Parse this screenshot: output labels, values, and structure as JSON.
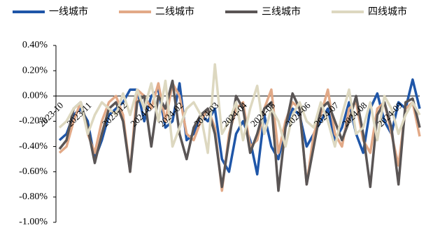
{
  "chart_data": {
    "type": "line",
    "categories": [
      "2023-10",
      null,
      null,
      null,
      "2023-11",
      null,
      null,
      null,
      null,
      "2023-12",
      null,
      null,
      null,
      "2024-01",
      null,
      null,
      null,
      "2024-02",
      null,
      null,
      null,
      null,
      "2024-03",
      null,
      null,
      null,
      "2024-04",
      null,
      null,
      null,
      "2024-05",
      null,
      null,
      null,
      null,
      "2024-06",
      null,
      null,
      null,
      "2024-07",
      null,
      null,
      null,
      "2024-08",
      null,
      null,
      null,
      null,
      "2024-09",
      null,
      null,
      null
    ],
    "ylim": [
      -1.0,
      0.4
    ],
    "yticks": [
      {
        "value": 0.4,
        "label": "0.40%"
      },
      {
        "value": 0.2,
        "label": "0.20%"
      },
      {
        "value": 0.0,
        "label": "0.00%"
      },
      {
        "value": -0.2,
        "label": "-0.20%"
      },
      {
        "value": -0.4,
        "label": "-0.40%"
      },
      {
        "value": -0.6,
        "label": "-0.60%"
      },
      {
        "value": -0.8,
        "label": "-0.80%"
      },
      {
        "value": -1.0,
        "label": "-1.00%"
      }
    ],
    "series": [
      {
        "name": "一线城市",
        "color": "#1f56a8",
        "values": [
          -0.35,
          -0.3,
          -0.15,
          -0.1,
          -0.2,
          -0.5,
          -0.35,
          -0.15,
          -0.1,
          -0.05,
          0.05,
          0.05,
          -0.2,
          0.0,
          0.05,
          -0.25,
          -0.2,
          0.1,
          -0.35,
          -0.3,
          -0.15,
          -0.2,
          -0.1,
          -0.5,
          -0.6,
          -0.3,
          -0.2,
          -0.35,
          -0.62,
          -0.15,
          -0.4,
          -0.5,
          -0.25,
          -0.1,
          -0.15,
          -0.4,
          -0.3,
          -0.2,
          -0.1,
          -0.35,
          -0.25,
          -0.05,
          -0.3,
          -0.45,
          -0.1,
          0.02,
          -0.2,
          -0.3,
          -0.05,
          -0.1,
          0.13,
          -0.1
        ]
      },
      {
        "name": "二线城市",
        "color": "#e2a987",
        "values": [
          -0.45,
          -0.4,
          -0.2,
          -0.05,
          -0.3,
          -0.45,
          -0.2,
          -0.05,
          0.0,
          -0.15,
          -0.6,
          0.05,
          0.0,
          -0.1,
          0.1,
          -0.2,
          0.1,
          0.0,
          -0.3,
          -0.35,
          -0.2,
          -0.1,
          -0.25,
          -0.75,
          -0.3,
          -0.1,
          -0.05,
          -0.4,
          -0.35,
          -0.1,
          0.05,
          -0.45,
          -0.2,
          -0.05,
          -0.1,
          -0.7,
          -0.3,
          -0.15,
          0.05,
          -0.3,
          -0.4,
          -0.1,
          -0.05,
          -0.35,
          -0.45,
          -0.1,
          -0.05,
          -0.3,
          -0.55,
          -0.1,
          -0.05,
          -0.32
        ]
      },
      {
        "name": "三线城市",
        "color": "#5a5555",
        "values": [
          -0.42,
          -0.35,
          -0.1,
          -0.05,
          -0.25,
          -0.53,
          -0.3,
          -0.1,
          -0.05,
          -0.2,
          -0.6,
          -0.05,
          0.0,
          -0.4,
          0.0,
          -0.1,
          0.12,
          -0.3,
          -0.5,
          -0.25,
          -0.15,
          -0.1,
          -0.3,
          -0.72,
          -0.35,
          0.0,
          -0.1,
          -0.45,
          -0.3,
          -0.1,
          -0.05,
          -0.75,
          -0.25,
          0.02,
          -0.1,
          -0.7,
          -0.4,
          -0.1,
          -0.05,
          -0.2,
          -0.35,
          -0.2,
          0.0,
          -0.3,
          -0.72,
          -0.15,
          -0.05,
          -0.25,
          -0.7,
          -0.05,
          -0.02,
          -0.25
        ]
      },
      {
        "name": "四线城市",
        "color": "#ddd8c0",
        "values": [
          -0.25,
          -0.2,
          -0.1,
          -0.05,
          -0.3,
          -0.15,
          -0.05,
          -0.1,
          -0.15,
          0.02,
          -0.15,
          0.05,
          -0.1,
          0.1,
          -0.2,
          0.12,
          -0.4,
          -0.25,
          -0.1,
          -0.05,
          -0.15,
          -0.45,
          0.25,
          -0.3,
          -0.2,
          -0.05,
          -0.35,
          -0.1,
          0.08,
          -0.3,
          -0.1,
          -0.2,
          -0.4,
          -0.15,
          -0.05,
          -0.2,
          -0.25,
          -0.05,
          -0.2,
          -0.4,
          -0.15,
          0.05,
          -0.3,
          -0.25,
          -0.05,
          -0.35,
          0.0,
          -0.1,
          -0.3,
          -0.15,
          -0.05,
          -0.15
        ]
      }
    ]
  }
}
